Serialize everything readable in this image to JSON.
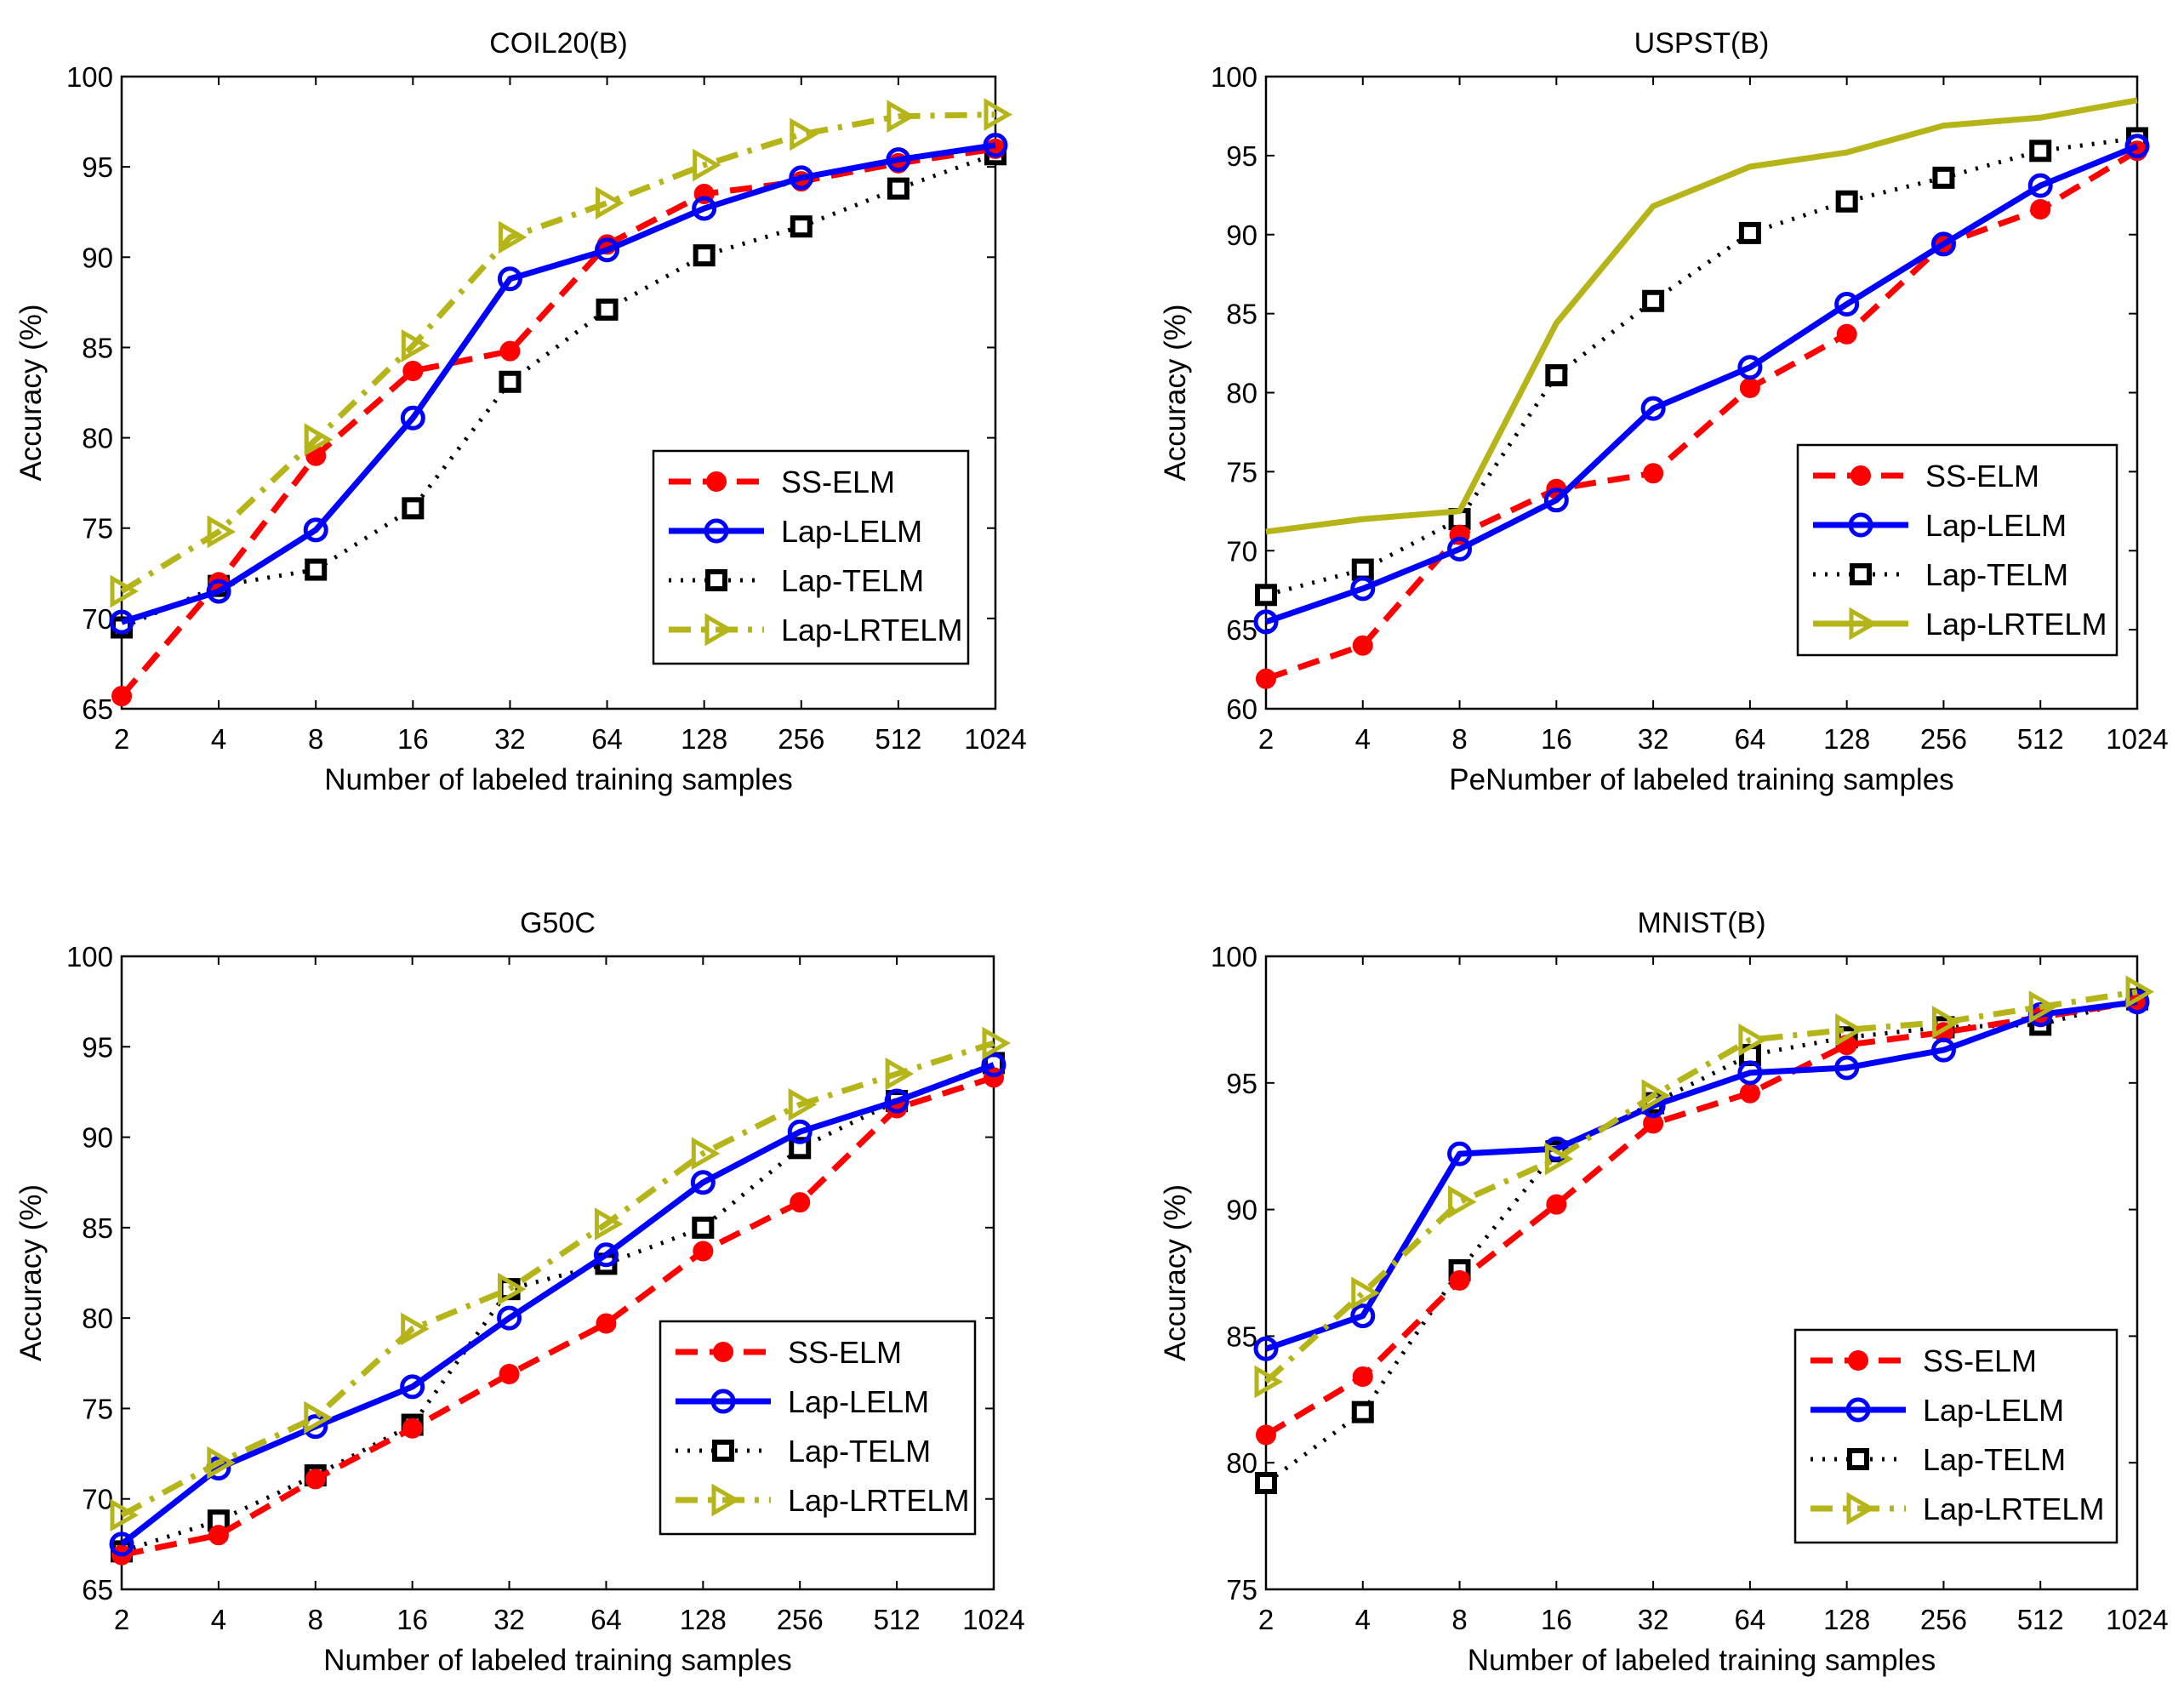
{
  "chart_data": [
    {
      "type": "line",
      "title": "COIL20(B)",
      "xlabel": "Number of labeled training samples",
      "ylabel": "Accuracy (%)",
      "categories": [
        "2",
        "4",
        "8",
        "16",
        "32",
        "64",
        "128",
        "256",
        "512",
        "1024"
      ],
      "ylim": [
        65,
        100
      ],
      "yticks": [
        65,
        70,
        75,
        80,
        85,
        90,
        95,
        100
      ],
      "legend_position": "lower-right",
      "series": [
        {
          "name": "SS-ELM",
          "values": [
            65.7,
            72.0,
            79.0,
            83.7,
            84.8,
            90.7,
            93.5,
            94.2,
            95.2,
            96.0
          ]
        },
        {
          "name": "Lap-LELM",
          "values": [
            69.8,
            71.5,
            74.9,
            81.1,
            88.8,
            90.4,
            92.7,
            94.4,
            95.4,
            96.2
          ]
        },
        {
          "name": "Lap-TELM",
          "values": [
            69.5,
            71.8,
            72.7,
            76.1,
            83.1,
            87.1,
            90.1,
            91.7,
            93.8,
            95.7
          ]
        },
        {
          "name": "Lap-LRTELM",
          "values": [
            71.5,
            74.8,
            79.9,
            85.1,
            91.1,
            93.0,
            95.1,
            96.8,
            97.8,
            97.9
          ]
        }
      ]
    },
    {
      "type": "line",
      "title": "USPST(B)",
      "xlabel": "PeNumber of labeled training samples",
      "ylabel": "Accuracy (%)",
      "categories": [
        "2",
        "4",
        "8",
        "16",
        "32",
        "64",
        "128",
        "256",
        "512",
        "1024"
      ],
      "ylim": [
        60,
        100
      ],
      "yticks": [
        60,
        65,
        70,
        75,
        80,
        85,
        90,
        95,
        100
      ],
      "legend_position": "lower-right",
      "series": [
        {
          "name": "SS-ELM",
          "values": [
            61.9,
            64.0,
            71.0,
            73.9,
            74.9,
            80.3,
            83.7,
            89.4,
            91.6,
            95.3
          ]
        },
        {
          "name": "Lap-LELM",
          "values": [
            65.5,
            67.6,
            70.1,
            73.2,
            79.0,
            81.6,
            85.6,
            89.4,
            93.1,
            95.6
          ]
        },
        {
          "name": "Lap-TELM",
          "values": [
            67.2,
            68.8,
            72.0,
            81.1,
            85.8,
            90.1,
            92.1,
            93.6,
            95.3,
            96.1
          ]
        },
        {
          "name": "Lap-LRTELM",
          "values": [
            71.2,
            72.0,
            72.5,
            84.4,
            91.8,
            94.3,
            95.2,
            96.9,
            97.4,
            98.5
          ]
        }
      ]
    },
    {
      "type": "line",
      "title": "G50C",
      "xlabel": "Number of labeled training samples",
      "ylabel": "Accuracy (%)",
      "categories": [
        "2",
        "4",
        "8",
        "16",
        "32",
        "64",
        "128",
        "256",
        "512",
        "1024"
      ],
      "ylim": [
        65,
        100
      ],
      "yticks": [
        65,
        70,
        75,
        80,
        85,
        90,
        95,
        100
      ],
      "legend_position": "lower-right",
      "series": [
        {
          "name": "SS-ELM",
          "values": [
            66.9,
            68.0,
            71.1,
            73.9,
            76.9,
            79.7,
            83.7,
            86.4,
            91.6,
            93.3
          ]
        },
        {
          "name": "Lap-LELM",
          "values": [
            67.5,
            71.7,
            74.0,
            76.2,
            80.0,
            83.5,
            87.5,
            90.3,
            92.0,
            94.0
          ]
        },
        {
          "name": "Lap-TELM",
          "values": [
            67.1,
            68.8,
            71.3,
            74.1,
            81.6,
            83.0,
            85.0,
            89.4,
            92.0,
            94.1
          ]
        },
        {
          "name": "Lap-LRTELM",
          "values": [
            69.1,
            72.0,
            74.5,
            79.4,
            81.6,
            85.2,
            89.1,
            91.8,
            93.5,
            95.2
          ]
        }
      ]
    },
    {
      "type": "line",
      "title": "MNIST(B)",
      "xlabel": "Number of labeled training samples",
      "ylabel": "Accuracy (%)",
      "categories": [
        "2",
        "4",
        "8",
        "16",
        "32",
        "64",
        "128",
        "256",
        "512",
        "1024"
      ],
      "ylim": [
        75,
        100
      ],
      "yticks": [
        75,
        80,
        85,
        90,
        95,
        100
      ],
      "legend_position": "lower-right",
      "series": [
        {
          "name": "SS-ELM",
          "values": [
            81.1,
            83.4,
            87.2,
            90.2,
            93.4,
            94.6,
            96.5,
            97.0,
            97.6,
            98.2
          ]
        },
        {
          "name": "Lap-LELM",
          "values": [
            84.5,
            85.8,
            92.2,
            92.4,
            94.1,
            95.4,
            95.6,
            96.3,
            97.7,
            98.2
          ]
        },
        {
          "name": "Lap-TELM",
          "values": [
            79.2,
            82.0,
            87.6,
            92.3,
            94.2,
            96.1,
            96.8,
            97.2,
            97.3,
            98.3
          ]
        },
        {
          "name": "Lap-LRTELM",
          "values": [
            83.2,
            86.7,
            90.3,
            92.0,
            94.5,
            96.7,
            97.1,
            97.4,
            98.0,
            98.6
          ]
        }
      ]
    }
  ],
  "styles": {
    "SS-ELM": {
      "color": "#ff0000",
      "dash": "26,14",
      "width": 7,
      "marker": "dot"
    },
    "Lap-LELM": {
      "color": "#0000ff",
      "dash": "",
      "width": 7,
      "marker": "circle"
    },
    "Lap-TELM": {
      "color": "#000000",
      "dash": "3,11",
      "width": 5,
      "marker": "square"
    },
    "Lap-LRTELM": {
      "color": "#b5b51a",
      "dash": "26,12,5,12",
      "width": 7,
      "marker": "triangle"
    },
    "Lap-LRTELM_solid": {
      "color": "#b5b51a",
      "dash": "",
      "width": 7,
      "marker": "none"
    }
  }
}
